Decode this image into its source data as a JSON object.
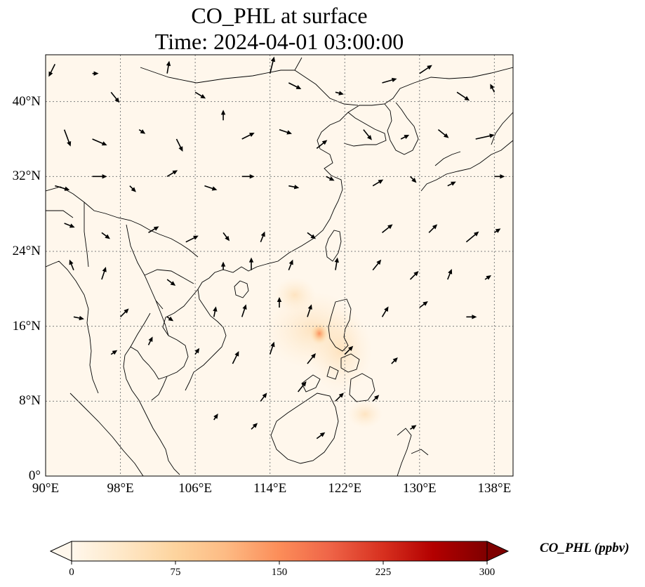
{
  "map": {
    "title_line1": "CO_PHL at surface",
    "title_line2": "Time: 2024-04-01 03:00:00",
    "extent": {
      "lon_min": 90,
      "lon_max": 140,
      "lat_min": 0,
      "lat_max": 45
    },
    "gridlines": true,
    "lon_ticks": [
      "90°E",
      "98°E",
      "106°E",
      "114°E",
      "122°E",
      "130°E",
      "138°E"
    ],
    "lat_ticks": [
      "0°",
      "8°N",
      "16°N",
      "24°N",
      "32°N",
      "40°N"
    ],
    "hotspot": {
      "lon": 119.4,
      "lat": 15.4,
      "region": "Luzon, Philippines"
    }
  },
  "colorbar": {
    "label": "CO_PHL (ppbv)",
    "ticks": [
      "0",
      "75",
      "150",
      "225",
      "300"
    ],
    "min": 0,
    "max": 300,
    "extend": "both",
    "colormap": "OrRd",
    "colors": [
      "#fff7ec",
      "#fee8c8",
      "#fdd49e",
      "#fdbb84",
      "#fc8d59",
      "#ef6548",
      "#d7301f",
      "#b30000",
      "#7f0000"
    ]
  },
  "colors": {
    "background_field": "#fff7ec",
    "coastline": "#000000",
    "gridline": "#7f7f7f",
    "arrow": "#000000"
  },
  "wind_vectors_note": "Surface wind arrows drawn over domain",
  "wind_vectors": [
    [
      91,
      44,
      -0.3,
      -0.6
    ],
    [
      95,
      43,
      0.3,
      0.0
    ],
    [
      97,
      41,
      0.4,
      -0.5
    ],
    [
      103,
      43,
      0.1,
      0.6
    ],
    [
      106,
      41,
      0.5,
      -0.3
    ],
    [
      114,
      43,
      0.2,
      0.8
    ],
    [
      116,
      42,
      0.6,
      -0.3
    ],
    [
      121,
      41,
      0.4,
      -0.1
    ],
    [
      126,
      42,
      0.7,
      0.2
    ],
    [
      130,
      43,
      0.6,
      0.4
    ],
    [
      134,
      41,
      0.6,
      -0.4
    ],
    [
      138,
      41,
      -0.2,
      0.4
    ],
    [
      92,
      37,
      0.3,
      -0.8
    ],
    [
      95,
      36,
      0.7,
      -0.3
    ],
    [
      100,
      37,
      0.3,
      -0.2
    ],
    [
      104,
      36,
      0.3,
      -0.6
    ],
    [
      109,
      38,
      0.0,
      0.5
    ],
    [
      111,
      36,
      0.6,
      0.3
    ],
    [
      115,
      37,
      0.6,
      -0.2
    ],
    [
      119,
      35,
      0.5,
      0.4
    ],
    [
      124,
      37,
      0.4,
      -0.5
    ],
    [
      128,
      36,
      0.4,
      0.2
    ],
    [
      132,
      37,
      0.5,
      -0.4
    ],
    [
      136,
      36,
      0.9,
      0.2
    ],
    [
      91,
      31,
      0.7,
      -0.2
    ],
    [
      95,
      32,
      0.7,
      0.0
    ],
    [
      99,
      31,
      0.3,
      -0.3
    ],
    [
      103,
      32,
      0.5,
      0.3
    ],
    [
      107,
      31,
      0.6,
      -0.2
    ],
    [
      111,
      32,
      0.6,
      0.0
    ],
    [
      116,
      31,
      0.5,
      -0.1
    ],
    [
      120,
      32,
      0.4,
      -0.2
    ],
    [
      125,
      31,
      0.5,
      0.3
    ],
    [
      129,
      32,
      0.3,
      -0.3
    ],
    [
      133,
      31,
      0.4,
      0.2
    ],
    [
      138,
      32,
      0.5,
      0.0
    ],
    [
      92,
      27,
      0.5,
      -0.2
    ],
    [
      96,
      26,
      0.4,
      -0.3
    ],
    [
      101,
      26,
      0.5,
      0.3
    ],
    [
      105,
      25,
      0.6,
      0.3
    ],
    [
      109,
      26,
      0.3,
      -0.4
    ],
    [
      113,
      25,
      0.2,
      0.5
    ],
    [
      118,
      26,
      0.4,
      -0.3
    ],
    [
      126,
      26,
      0.5,
      0.4
    ],
    [
      131,
      26,
      0.4,
      0.4
    ],
    [
      135,
      25,
      0.6,
      0.5
    ],
    [
      138,
      26,
      0.3,
      0.2
    ],
    [
      93,
      22,
      -0.2,
      0.5
    ],
    [
      96,
      21,
      0.2,
      0.6
    ],
    [
      103,
      21,
      0.4,
      -0.3
    ],
    [
      109,
      22,
      0.0,
      0.4
    ],
    [
      112,
      22,
      0.0,
      0.6
    ],
    [
      116,
      22,
      0.2,
      0.5
    ],
    [
      121,
      22,
      0.1,
      0.6
    ],
    [
      125,
      22,
      0.4,
      0.5
    ],
    [
      129,
      21,
      0.4,
      0.4
    ],
    [
      133,
      21,
      0.2,
      0.5
    ],
    [
      137,
      21,
      0.3,
      0.2
    ],
    [
      93,
      17,
      0.5,
      -0.1
    ],
    [
      98,
      17,
      0.4,
      0.4
    ],
    [
      103,
      17,
      0.3,
      -0.2
    ],
    [
      108,
      17,
      0.1,
      0.5
    ],
    [
      111,
      17,
      0.2,
      0.6
    ],
    [
      115,
      18,
      0.0,
      0.5
    ],
    [
      118,
      17,
      0.2,
      0.6
    ],
    [
      126,
      17,
      0.3,
      0.5
    ],
    [
      130,
      18,
      0.4,
      0.3
    ],
    [
      135,
      17,
      0.5,
      0.0
    ],
    [
      97,
      13,
      0.3,
      0.2
    ],
    [
      101,
      14,
      0.2,
      0.4
    ],
    [
      106,
      13,
      0.2,
      0.3
    ],
    [
      110,
      12,
      0.3,
      0.6
    ],
    [
      114,
      13,
      0.2,
      0.6
    ],
    [
      118,
      12,
      0.4,
      0.5
    ],
    [
      122,
      13,
      0.4,
      0.4
    ],
    [
      127,
      12,
      0.3,
      0.3
    ],
    [
      113,
      8,
      0.3,
      0.4
    ],
    [
      117,
      9,
      0.4,
      0.5
    ],
    [
      121,
      8,
      0.4,
      0.4
    ],
    [
      125,
      8,
      0.3,
      0.3
    ],
    [
      108,
      6,
      0.2,
      0.3
    ],
    [
      112,
      5,
      0.3,
      0.3
    ],
    [
      119,
      4,
      0.4,
      0.3
    ],
    [
      129,
      5,
      0.3,
      0.2
    ]
  ]
}
